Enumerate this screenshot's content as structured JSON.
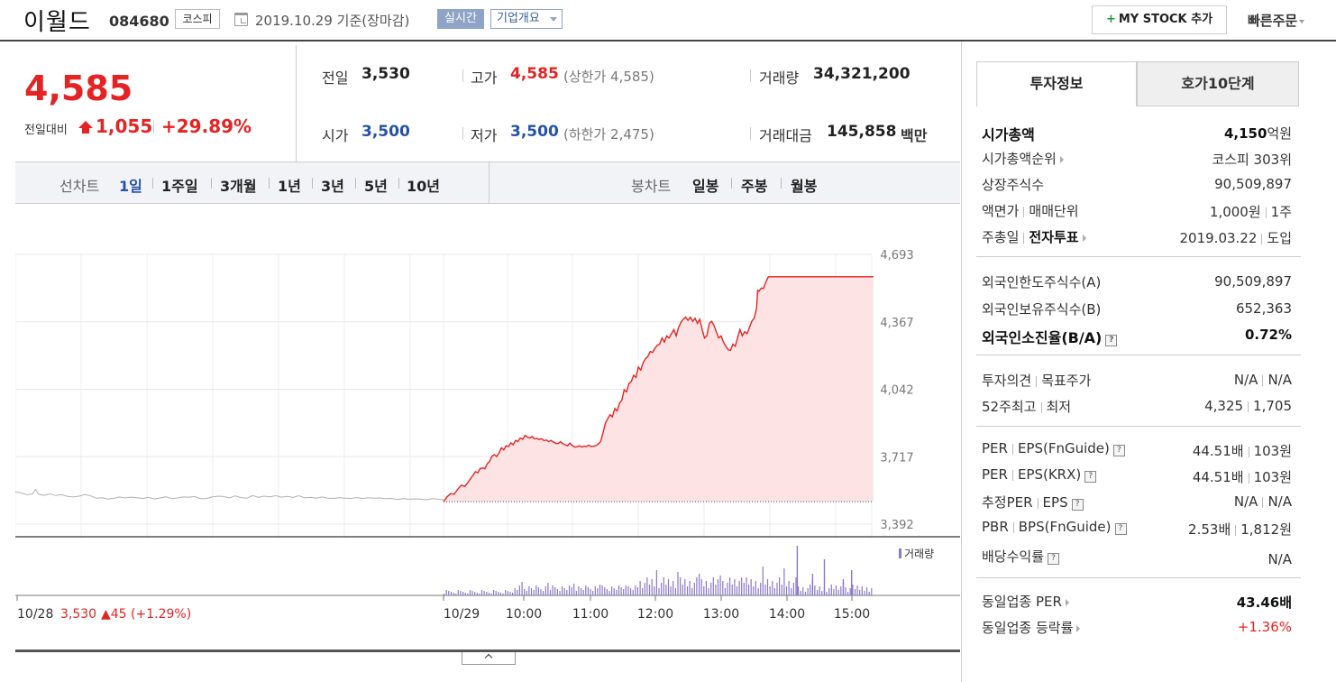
{
  "header": {
    "name": "이월드",
    "code": "084680",
    "market": "코스피",
    "date": "2019.10.29 기준(장마감)",
    "realtime": "실시간",
    "company_info": "기업개요",
    "my_stock": "MY STOCK 추가",
    "quick_order": "빠른주문"
  },
  "quote": {
    "price": "4,585",
    "compare_label": "전일대비",
    "change": "1,055",
    "rate": "+29.89%",
    "prev_close_label": "전일",
    "prev_close": "3,530",
    "open_label": "시가",
    "open": "3,500",
    "high_label": "고가",
    "high": "4,585",
    "upper_limit": "(상한가 4,585)",
    "low_label": "저가",
    "low": "3,500",
    "lower_limit": "(하한가 2,475)",
    "volume_label": "거래량",
    "volume": "34,321,200",
    "amount_label": "거래대금",
    "amount": "145,858",
    "amount_unit": "백만"
  },
  "tabs": {
    "line_label": "선차트",
    "line": [
      "1일",
      "1주일",
      "3개월",
      "1년",
      "3년",
      "5년",
      "10년"
    ],
    "candle_label": "봉차트",
    "candle": [
      "일봉",
      "주봉",
      "월봉"
    ]
  },
  "chart_data": {
    "type": "line",
    "ylim": [
      3392,
      4693
    ],
    "yticks": [
      "4,693",
      "4,367",
      "4,042",
      "3,717",
      "3,392"
    ],
    "xticks": [
      "10/29",
      "10:00",
      "11:00",
      "12:00",
      "13:00",
      "14:00",
      "15:00"
    ],
    "prev_day_label": "10/28",
    "prev_day_close": "3,530",
    "prev_day_change": "▲45 (+1.29%)",
    "volume_label": "거래량",
    "reference_price": 3500,
    "prev_series": [
      [
        0,
        3547
      ],
      [
        2,
        3543
      ],
      [
        4,
        3534
      ],
      [
        6,
        3538
      ],
      [
        7,
        3560
      ],
      [
        8,
        3536
      ],
      [
        10,
        3531
      ],
      [
        12,
        3538
      ],
      [
        14,
        3530
      ],
      [
        16,
        3534
      ],
      [
        18,
        3526
      ],
      [
        20,
        3523
      ],
      [
        22,
        3527
      ],
      [
        24,
        3535
      ],
      [
        26,
        3528
      ],
      [
        28,
        3517
      ],
      [
        30,
        3519
      ],
      [
        32,
        3513
      ],
      [
        34,
        3516
      ],
      [
        36,
        3523
      ],
      [
        38,
        3518
      ],
      [
        40,
        3522
      ],
      [
        42,
        3519
      ],
      [
        44,
        3516
      ],
      [
        46,
        3521
      ],
      [
        48,
        3514
      ],
      [
        50,
        3518
      ],
      [
        52,
        3524
      ],
      [
        54,
        3515
      ],
      [
        56,
        3518
      ],
      [
        58,
        3523
      ],
      [
        60,
        3522
      ],
      [
        62,
        3525
      ],
      [
        64,
        3515
      ],
      [
        66,
        3515
      ],
      [
        68,
        3523
      ],
      [
        70,
        3527
      ],
      [
        72,
        3525
      ],
      [
        74,
        3518
      ],
      [
        76,
        3528
      ],
      [
        78,
        3520
      ],
      [
        80,
        3517
      ],
      [
        82,
        3530
      ],
      [
        84,
        3521
      ],
      [
        86,
        3527
      ],
      [
        88,
        3524
      ],
      [
        90,
        3529
      ],
      [
        92,
        3522
      ],
      [
        94,
        3526
      ],
      [
        96,
        3521
      ],
      [
        98,
        3529
      ],
      [
        100,
        3519
      ],
      [
        102,
        3521
      ],
      [
        104,
        3517
      ],
      [
        106,
        3523
      ],
      [
        108,
        3517
      ],
      [
        110,
        3516
      ],
      [
        112,
        3520
      ],
      [
        114,
        3517
      ],
      [
        116,
        3516
      ],
      [
        118,
        3520
      ],
      [
        120,
        3516
      ],
      [
        122,
        3519
      ],
      [
        124,
        3517
      ],
      [
        126,
        3518
      ],
      [
        128,
        3515
      ],
      [
        130,
        3516
      ],
      [
        132,
        3511
      ],
      [
        134,
        3515
      ],
      [
        136,
        3512
      ],
      [
        138,
        3514
      ],
      [
        140,
        3513
      ],
      [
        142,
        3509
      ],
      [
        144,
        3515
      ],
      [
        146,
        3513
      ],
      [
        148,
        3509
      ]
    ],
    "series": [
      [
        0,
        3500
      ],
      [
        3,
        3524
      ],
      [
        6,
        3539
      ],
      [
        9,
        3536
      ],
      [
        12,
        3560
      ],
      [
        15,
        3580
      ],
      [
        18,
        3574
      ],
      [
        21,
        3596
      ],
      [
        24,
        3620
      ],
      [
        27,
        3645
      ],
      [
        29,
        3640
      ],
      [
        31,
        3660
      ],
      [
        33,
        3663
      ],
      [
        35,
        3659
      ],
      [
        37,
        3683
      ],
      [
        39,
        3695
      ],
      [
        41,
        3720
      ],
      [
        43,
        3727
      ],
      [
        45,
        3718
      ],
      [
        47,
        3736
      ],
      [
        49,
        3760
      ],
      [
        51,
        3750
      ],
      [
        53,
        3770
      ],
      [
        55,
        3766
      ],
      [
        57,
        3784
      ],
      [
        59,
        3775
      ],
      [
        61,
        3796
      ],
      [
        63,
        3790
      ],
      [
        65,
        3808
      ],
      [
        67,
        3801
      ],
      [
        69,
        3820
      ],
      [
        71,
        3812
      ],
      [
        73,
        3807
      ],
      [
        75,
        3815
      ],
      [
        77,
        3803
      ],
      [
        79,
        3806
      ],
      [
        81,
        3800
      ],
      [
        83,
        3804
      ],
      [
        85,
        3795
      ],
      [
        87,
        3798
      ],
      [
        89,
        3790
      ],
      [
        91,
        3796
      ],
      [
        93,
        3788
      ],
      [
        95,
        3782
      ],
      [
        97,
        3780
      ],
      [
        99,
        3790
      ],
      [
        101,
        3780
      ],
      [
        103,
        3775
      ],
      [
        105,
        3770
      ],
      [
        107,
        3783
      ],
      [
        109,
        3772
      ],
      [
        111,
        3764
      ],
      [
        113,
        3765
      ],
      [
        115,
        3770
      ],
      [
        117,
        3764
      ],
      [
        119,
        3768
      ],
      [
        121,
        3766
      ],
      [
        123,
        3773
      ],
      [
        125,
        3766
      ],
      [
        127,
        3768
      ],
      [
        129,
        3771
      ],
      [
        131,
        3778
      ],
      [
        133,
        3790
      ],
      [
        135,
        3832
      ],
      [
        137,
        3878
      ],
      [
        139,
        3900
      ],
      [
        141,
        3920
      ],
      [
        143,
        3910
      ],
      [
        145,
        3950
      ],
      [
        147,
        3938
      ],
      [
        149,
        3975
      ],
      [
        151,
        3990
      ],
      [
        153,
        4040
      ],
      [
        155,
        4030
      ],
      [
        157,
        4070
      ],
      [
        159,
        4080
      ],
      [
        161,
        4110
      ],
      [
        163,
        4100
      ],
      [
        165,
        4150
      ],
      [
        167,
        4135
      ],
      [
        169,
        4170
      ],
      [
        171,
        4190
      ],
      [
        173,
        4200
      ],
      [
        175,
        4225
      ],
      [
        177,
        4220
      ],
      [
        179,
        4240
      ],
      [
        181,
        4255
      ],
      [
        183,
        4260
      ],
      [
        185,
        4290
      ],
      [
        187,
        4270
      ],
      [
        189,
        4300
      ],
      [
        191,
        4290
      ],
      [
        193,
        4310
      ],
      [
        195,
        4330
      ],
      [
        197,
        4300
      ],
      [
        199,
        4340
      ],
      [
        201,
        4365
      ],
      [
        203,
        4380
      ],
      [
        205,
        4390
      ],
      [
        207,
        4375
      ],
      [
        209,
        4390
      ],
      [
        211,
        4370
      ],
      [
        213,
        4385
      ],
      [
        215,
        4360
      ],
      [
        217,
        4380
      ],
      [
        219,
        4330
      ],
      [
        221,
        4290
      ],
      [
        223,
        4300
      ],
      [
        225,
        4360
      ],
      [
        227,
        4370
      ],
      [
        229,
        4350
      ],
      [
        231,
        4320
      ],
      [
        233,
        4290
      ],
      [
        235,
        4300
      ],
      [
        237,
        4270
      ],
      [
        239,
        4250
      ],
      [
        241,
        4233
      ],
      [
        243,
        4230
      ],
      [
        245,
        4260
      ],
      [
        247,
        4250
      ],
      [
        249,
        4290
      ],
      [
        251,
        4330
      ],
      [
        253,
        4300
      ],
      [
        255,
        4320
      ],
      [
        257,
        4310
      ],
      [
        259,
        4340
      ],
      [
        261,
        4370
      ],
      [
        263,
        4385
      ],
      [
        265,
        4430
      ],
      [
        266,
        4520
      ],
      [
        267,
        4515
      ],
      [
        269,
        4530
      ],
      [
        271,
        4530
      ],
      [
        273,
        4560
      ],
      [
        275,
        4585
      ],
      [
        277,
        4585
      ],
      [
        280,
        4585
      ],
      [
        290,
        4585
      ],
      [
        300,
        4585
      ],
      [
        310,
        4585
      ],
      [
        320,
        4585
      ],
      [
        330,
        4585
      ],
      [
        340,
        4585
      ],
      [
        350,
        4585
      ],
      [
        360,
        4585
      ],
      [
        364,
        4585
      ]
    ]
  },
  "invest": {
    "tab1": "투자정보",
    "tab2": "호가10단계",
    "rows": [
      {
        "label": "시가총액",
        "value": "4,150",
        "unit": "억원"
      },
      {
        "label": "시가총액순위",
        "value": "코스피 303위"
      },
      {
        "label": "상장주식수",
        "value": "90,509,897"
      },
      {
        "label": "액면가",
        "label2": "매매단위",
        "value": "1,000원",
        "value2": "1주"
      },
      {
        "label": "주총일",
        "label2": "전자투표",
        "value": "2019.03.22",
        "value2": "도입"
      },
      {
        "label": "외국인한도주식수(A)",
        "value": "90,509,897"
      },
      {
        "label": "외국인보유주식수(B)",
        "value": "652,363"
      },
      {
        "label": "외국인소진율(B/A)",
        "value": "0.72%"
      },
      {
        "label": "투자의견",
        "label2": "목표주가",
        "value": "N/A",
        "value2": "N/A"
      },
      {
        "label": "52주최고",
        "label2": "최저",
        "value": "4,325",
        "value2": "1,705"
      },
      {
        "label": "PER",
        "label2": "EPS(FnGuide)",
        "value": "44.51배",
        "value2": "103원"
      },
      {
        "label": "PER",
        "label2": "EPS(KRX)",
        "value": "44.51배",
        "value2": "103원"
      },
      {
        "label": "추정PER",
        "label2": "EPS",
        "value": "N/A",
        "value2": "N/A"
      },
      {
        "label": "PBR",
        "label2": "BPS(FnGuide)",
        "value": "2.53배",
        "value2": "1,812원"
      },
      {
        "label": "배당수익률",
        "value": "N/A"
      },
      {
        "label": "동일업종 PER",
        "value": "43.46배"
      },
      {
        "label": "동일업종 등락률",
        "value": "+1.36%"
      }
    ]
  },
  "colors": {
    "up": "#e52323",
    "down": "#2552a8",
    "volume": "#8a78c8"
  }
}
